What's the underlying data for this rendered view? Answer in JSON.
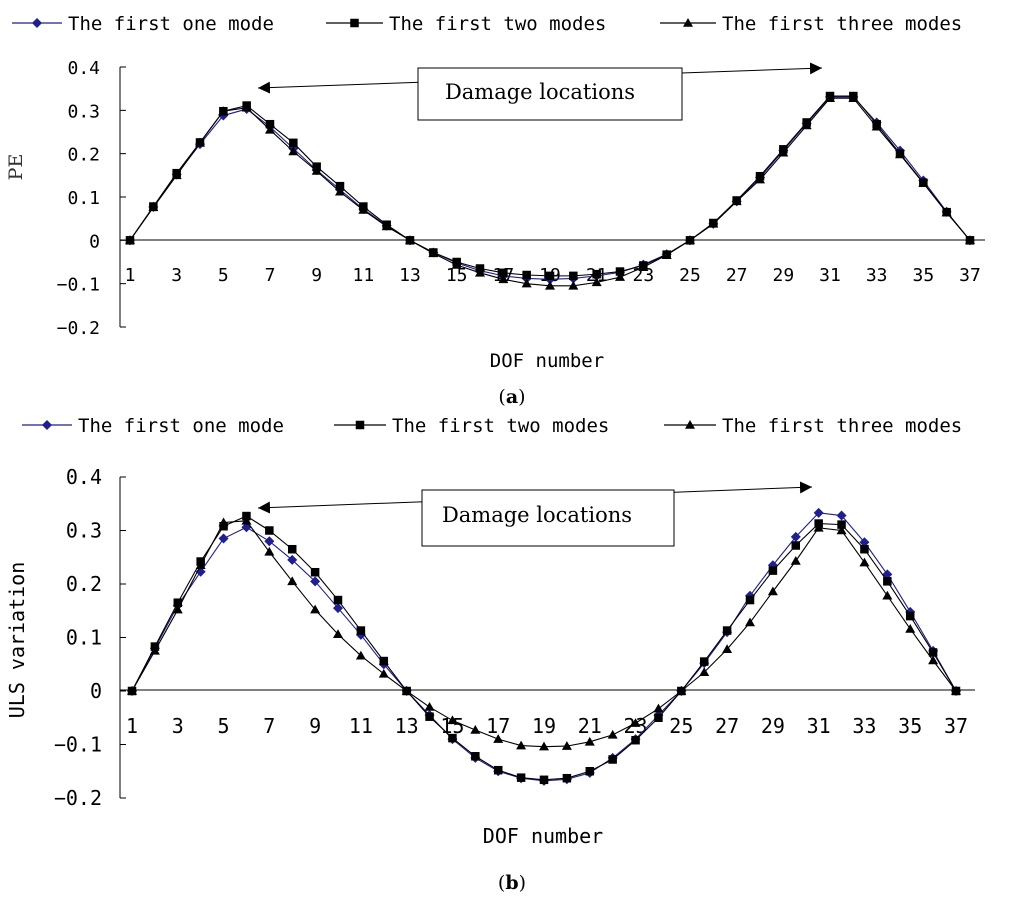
{
  "chart_data": [
    {
      "type": "line",
      "panel_label": "(a)",
      "panel_letter": "a",
      "xlabel": "DOF number",
      "ylabel": "PE",
      "ylim": [
        -0.2,
        0.4
      ],
      "y_ticks": [
        "0.4",
        "0.3",
        "0.2",
        "0.1",
        "0",
        "-0.1",
        "-0.2"
      ],
      "x_tick_labels": [
        "1",
        "3",
        "5",
        "7",
        "9",
        "11",
        "13",
        "15",
        "17",
        "19",
        "21",
        "23",
        "25",
        "27",
        "29",
        "31",
        "33",
        "35",
        "37"
      ],
      "legend_placement": "top",
      "annotation": "Damage locations",
      "x": [
        1,
        2,
        3,
        4,
        5,
        6,
        7,
        8,
        9,
        10,
        11,
        12,
        13,
        14,
        15,
        16,
        17,
        18,
        19,
        20,
        21,
        22,
        23,
        24,
        25,
        26,
        27,
        28,
        29,
        30,
        31,
        32,
        33,
        34,
        35,
        36,
        37
      ],
      "series": [
        {
          "name": "The first one mode",
          "marker": "diamond",
          "color": "#1f1f8f",
          "values": [
            0,
            0.077,
            0.152,
            0.222,
            0.288,
            0.303,
            0.262,
            0.212,
            0.162,
            0.117,
            0.072,
            0.034,
            0,
            -0.028,
            -0.052,
            -0.07,
            -0.082,
            -0.088,
            -0.09,
            -0.088,
            -0.082,
            -0.074,
            -0.056,
            -0.032,
            0,
            0.038,
            0.09,
            0.145,
            0.207,
            0.27,
            0.331,
            0.331,
            0.272,
            0.207,
            0.138,
            0.066,
            0
          ]
        },
        {
          "name": "The first two modes",
          "marker": "square",
          "color": "#000000",
          "values": [
            0,
            0.078,
            0.155,
            0.226,
            0.298,
            0.311,
            0.268,
            0.225,
            0.17,
            0.125,
            0.078,
            0.036,
            0,
            -0.028,
            -0.05,
            -0.065,
            -0.075,
            -0.08,
            -0.082,
            -0.082,
            -0.078,
            -0.072,
            -0.058,
            -0.033,
            0,
            0.04,
            0.092,
            0.148,
            0.21,
            0.272,
            0.333,
            0.333,
            0.268,
            0.2,
            0.133,
            0.065,
            0
          ]
        },
        {
          "name": "The first three modes",
          "marker": "triangle",
          "color": "#000000",
          "values": [
            0,
            0.076,
            0.15,
            0.225,
            0.298,
            0.306,
            0.255,
            0.205,
            0.16,
            0.112,
            0.07,
            0.032,
            0,
            -0.03,
            -0.057,
            -0.075,
            -0.09,
            -0.1,
            -0.105,
            -0.105,
            -0.097,
            -0.085,
            -0.062,
            -0.034,
            0,
            0.038,
            0.09,
            0.14,
            0.202,
            0.265,
            0.328,
            0.328,
            0.262,
            0.198,
            0.132,
            0.064,
            0
          ]
        }
      ]
    },
    {
      "type": "line",
      "panel_label": "(b)",
      "panel_letter": "b",
      "xlabel": "DOF number",
      "ylabel": "ULS variation",
      "ylim": [
        -0.2,
        0.4
      ],
      "y_ticks": [
        "0.4",
        "0.3",
        "0.2",
        "0.1",
        "0",
        "-0.1",
        "-0.2"
      ],
      "x_tick_labels": [
        "1",
        "3",
        "5",
        "7",
        "9",
        "11",
        "13",
        "15",
        "17",
        "19",
        "21",
        "23",
        "25",
        "27",
        "29",
        "31",
        "33",
        "35",
        "37"
      ],
      "legend_placement": "top",
      "annotation": "Damage locations",
      "x": [
        1,
        2,
        3,
        4,
        5,
        6,
        7,
        8,
        9,
        10,
        11,
        12,
        13,
        14,
        15,
        16,
        17,
        18,
        19,
        20,
        21,
        22,
        23,
        24,
        25,
        26,
        27,
        28,
        29,
        30,
        31,
        32,
        33,
        34,
        35,
        36,
        37
      ],
      "series": [
        {
          "name": "The first one mode",
          "marker": "diamond",
          "color": "#1f1f8f",
          "values": [
            0,
            0.08,
            0.16,
            0.223,
            0.285,
            0.306,
            0.28,
            0.245,
            0.205,
            0.155,
            0.105,
            0.05,
            0,
            -0.045,
            -0.09,
            -0.125,
            -0.15,
            -0.163,
            -0.168,
            -0.165,
            -0.153,
            -0.125,
            -0.09,
            -0.045,
            0,
            0.052,
            0.11,
            0.178,
            0.235,
            0.288,
            0.333,
            0.328,
            0.278,
            0.218,
            0.148,
            0.075,
            0
          ]
        },
        {
          "name": "The first two modes",
          "marker": "square",
          "color": "#000000",
          "values": [
            0,
            0.083,
            0.165,
            0.242,
            0.308,
            0.327,
            0.3,
            0.265,
            0.222,
            0.17,
            0.113,
            0.056,
            0,
            -0.048,
            -0.088,
            -0.122,
            -0.148,
            -0.162,
            -0.166,
            -0.163,
            -0.15,
            -0.128,
            -0.092,
            -0.05,
            0,
            0.055,
            0.113,
            0.17,
            0.225,
            0.272,
            0.313,
            0.311,
            0.265,
            0.205,
            0.14,
            0.072,
            0
          ]
        },
        {
          "name": "The first three modes",
          "marker": "triangle",
          "color": "#000000",
          "values": [
            0,
            0.075,
            0.152,
            0.235,
            0.315,
            0.318,
            0.26,
            0.205,
            0.152,
            0.106,
            0.066,
            0.032,
            0,
            -0.03,
            -0.055,
            -0.073,
            -0.09,
            -0.102,
            -0.104,
            -0.103,
            -0.095,
            -0.082,
            -0.06,
            -0.033,
            0,
            0.035,
            0.078,
            0.128,
            0.186,
            0.243,
            0.305,
            0.3,
            0.24,
            0.178,
            0.116,
            0.057,
            0
          ]
        }
      ]
    }
  ]
}
